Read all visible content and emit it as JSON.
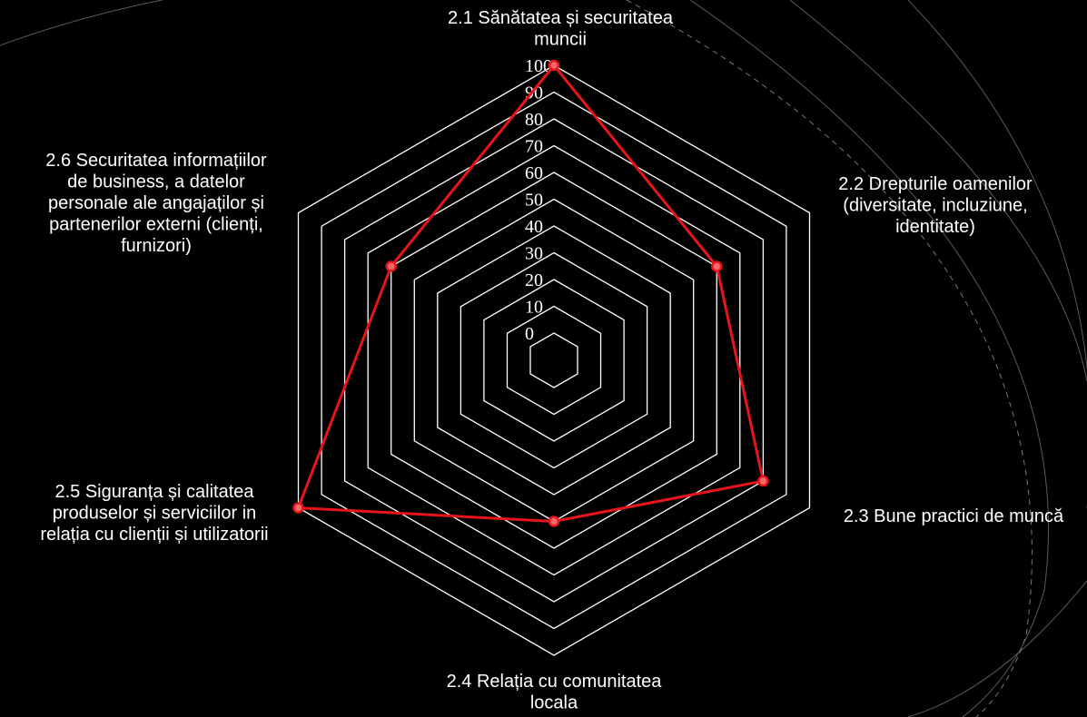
{
  "chart_data": {
    "type": "radar",
    "categories": [
      [
        "2.1 Sănătatea și securitatea",
        "muncii"
      ],
      [
        "2.2 Drepturile oamenilor",
        "(diversitate, incluziune,",
        "identitate)"
      ],
      [
        "2.3 Bune practici de muncă"
      ],
      [
        "2.4 Relația cu comunitatea",
        "locala"
      ],
      [
        "2.5 Siguranța și calitatea",
        "produselor și serviciilor in",
        "relația cu clienții și utilizatorii"
      ],
      [
        "2.6 Securitatea informațiilor",
        "de business, a datelor",
        "personale ale angajaților și",
        "partenerilor externi (clienți,",
        "furnizori)"
      ]
    ],
    "values": [
      100,
      60,
      80,
      50,
      100,
      60
    ],
    "rlim": [
      0,
      100
    ],
    "ticks": [
      "0",
      "10",
      "20",
      "30",
      "40",
      "50",
      "60",
      "70",
      "80",
      "90",
      "100"
    ],
    "grid": true,
    "colors": {
      "series": "#e8141c",
      "grid": "#ffffff",
      "background": "#000000",
      "text": "#ffffff"
    }
  }
}
